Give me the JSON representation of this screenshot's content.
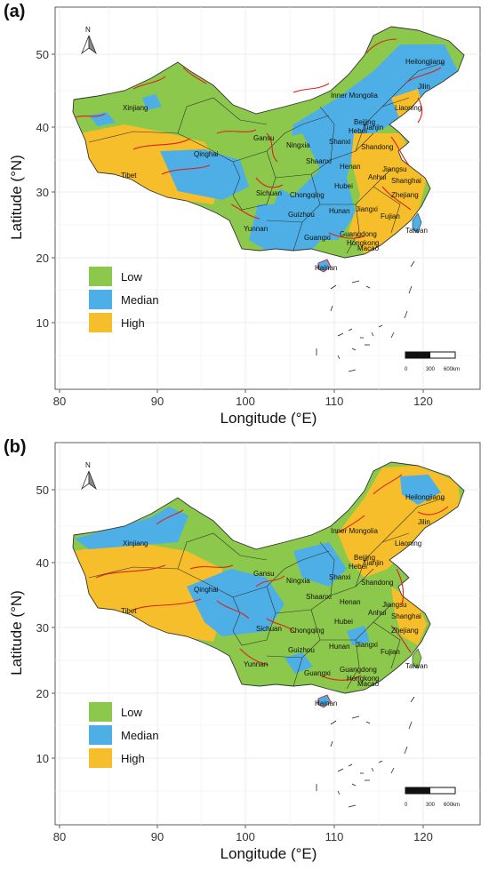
{
  "panels": [
    {
      "label": "(a)",
      "scheme": "a"
    },
    {
      "label": "(b)",
      "scheme": "b"
    }
  ],
  "axes": {
    "x_title": "Longitude (°E)",
    "y_title": "Latitude (°N)",
    "x_ticks": [
      "80",
      "90",
      "100",
      "110",
      "120"
    ],
    "y_ticks": [
      "10",
      "20",
      "30",
      "40",
      "50"
    ]
  },
  "legend": {
    "items": [
      {
        "label": "Low",
        "color": "#8CC84B"
      },
      {
        "label": "Median",
        "color": "#4DAFE6"
      },
      {
        "label": "High",
        "color": "#F5BE2A"
      }
    ]
  },
  "north_arrow": {
    "letter": "N",
    "icon": "north-arrow-icon"
  },
  "scale_bar": {
    "labels": [
      "0",
      "300",
      "600km"
    ]
  },
  "provinces": [
    "Heilongjiang",
    "Jilin",
    "Liaoning",
    "Inner Mongolia",
    "Beijing",
    "Hebei",
    "Tianjin",
    "Xinjiang",
    "Gansu",
    "Ningxia",
    "Shanxi",
    "Shandong",
    "Qinghai",
    "Shaanxi",
    "Henan",
    "Jiangsu",
    "Tibet",
    "Anhui",
    "Shanghai",
    "Sichuan",
    "Chongqing",
    "Hubei",
    "Zhejiang",
    "Guizhou",
    "Hunan",
    "Jiangxi",
    "Fujian",
    "Yunnan",
    "Guangxi",
    "Guangdong",
    "Taiwan",
    "Hongkong",
    "Macao",
    "Hainan"
  ]
}
